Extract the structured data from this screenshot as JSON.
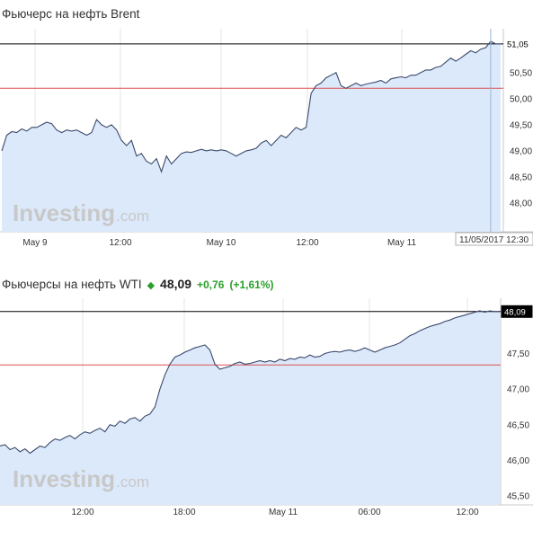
{
  "charts": [
    {
      "title": "Фьючерс на нефть Brent",
      "last_label": "51,05",
      "crosshair_label": "11/05/2017 12:30",
      "watermark": {
        "name": "Investing",
        "suffix": ".com"
      },
      "colors": {
        "line": "#3b4a6b",
        "fill": "#dce9fb",
        "hline_last": "#000000",
        "hline_ref": "#d9534f",
        "crosshair": "#9ab3d6"
      }
    },
    {
      "title": "Фьючерсы на нефть WTI",
      "price": "48,09",
      "change": "+0,76",
      "change_pct": "(+1,61%)",
      "last_label": "48,09",
      "watermark": {
        "name": "Investing",
        "suffix": ".com"
      },
      "colors": {
        "line": "#3b4a6b",
        "fill": "#dce9fb",
        "hline_last": "#000000",
        "hline_ref": "#d9534f",
        "up": "#2aa02a"
      }
    }
  ],
  "chart_data": [
    {
      "type": "area",
      "title": "Фьючерс на нефть Brent",
      "y_tick_labels": [
        "51,05",
        "50,50",
        "50,00",
        "49,50",
        "49,00",
        "48,50",
        "48,00"
      ],
      "ylim": [
        48.0,
        51.1
      ],
      "x_tick_labels": [
        "May 9",
        "12:00",
        "May 10",
        "12:00",
        "May 11"
      ],
      "x_index_max": 100,
      "reference_line": 50.2,
      "last_value": 51.05,
      "crosshair_x": 98,
      "x": [
        0,
        1,
        2,
        3,
        4,
        5,
        6,
        7,
        8,
        9,
        10,
        11,
        12,
        13,
        14,
        15,
        16,
        17,
        18,
        19,
        20,
        21,
        22,
        23,
        24,
        25,
        26,
        27,
        28,
        29,
        30,
        31,
        32,
        33,
        34,
        35,
        36,
        37,
        38,
        39,
        40,
        41,
        42,
        43,
        44,
        45,
        46,
        47,
        48,
        49,
        50,
        51,
        52,
        53,
        54,
        55,
        56,
        57,
        58,
        59,
        60,
        61,
        62,
        63,
        64,
        65,
        66,
        67,
        68,
        69,
        70,
        71,
        72,
        73,
        74,
        75,
        76,
        77,
        78,
        79,
        80,
        81,
        82,
        83,
        84,
        85,
        86,
        87,
        88,
        89,
        90,
        91,
        92,
        93,
        94,
        95,
        96,
        97,
        98,
        99,
        100
      ],
      "values": [
        49.0,
        49.3,
        49.37,
        49.35,
        49.42,
        49.38,
        49.45,
        49.45,
        49.5,
        49.55,
        49.52,
        49.4,
        49.35,
        49.4,
        49.38,
        49.4,
        49.35,
        49.3,
        49.35,
        49.6,
        49.5,
        49.45,
        49.5,
        49.4,
        49.2,
        49.1,
        49.2,
        48.9,
        48.95,
        48.8,
        48.75,
        48.85,
        48.6,
        48.9,
        48.75,
        48.85,
        48.95,
        48.98,
        48.97,
        49.0,
        49.03,
        49.0,
        49.02,
        49.0,
        49.02,
        49.0,
        48.95,
        48.9,
        48.95,
        49.0,
        49.02,
        49.05,
        49.15,
        49.2,
        49.1,
        49.2,
        49.3,
        49.25,
        49.35,
        49.45,
        49.4,
        49.45,
        50.1,
        50.25,
        50.3,
        50.4,
        50.45,
        50.5,
        50.25,
        50.2,
        50.25,
        50.3,
        50.25,
        50.28,
        50.3,
        50.32,
        50.35,
        50.3,
        50.38,
        50.4,
        50.42,
        50.4,
        50.45,
        50.45,
        50.5,
        50.55,
        50.55,
        50.6,
        50.62,
        50.7,
        50.78,
        50.72,
        50.78,
        50.85,
        50.92,
        50.88,
        50.95,
        50.98,
        51.1,
        51.05,
        51.05
      ]
    },
    {
      "type": "area",
      "title": "Фьючерсы на нефть WTI",
      "y_tick_labels": [
        "48,09",
        "47,50",
        "47,00",
        "46,50",
        "46,00",
        "45,50"
      ],
      "ylim": [
        45.5,
        48.1
      ],
      "x_tick_labels": [
        "12:00",
        "18:00",
        "May 11",
        "06:00",
        "12:00"
      ],
      "x_index_max": 100,
      "reference_line": 47.34,
      "last_value": 48.09,
      "x": [
        0,
        1,
        2,
        3,
        4,
        5,
        6,
        7,
        8,
        9,
        10,
        11,
        12,
        13,
        14,
        15,
        16,
        17,
        18,
        19,
        20,
        21,
        22,
        23,
        24,
        25,
        26,
        27,
        28,
        29,
        30,
        31,
        32,
        33,
        34,
        35,
        36,
        37,
        38,
        39,
        40,
        41,
        42,
        43,
        44,
        45,
        46,
        47,
        48,
        49,
        50,
        51,
        52,
        53,
        54,
        55,
        56,
        57,
        58,
        59,
        60,
        61,
        62,
        63,
        64,
        65,
        66,
        67,
        68,
        69,
        70,
        71,
        72,
        73,
        74,
        75,
        76,
        77,
        78,
        79,
        80,
        81,
        82,
        83,
        84,
        85,
        86,
        87,
        88,
        89,
        90,
        91,
        92,
        93,
        94,
        95,
        96,
        97,
        98,
        99,
        100
      ],
      "values": [
        46.2,
        46.22,
        46.15,
        46.18,
        46.12,
        46.16,
        46.1,
        46.15,
        46.2,
        46.18,
        46.25,
        46.3,
        46.28,
        46.32,
        46.35,
        46.3,
        46.36,
        46.4,
        46.38,
        46.42,
        46.45,
        46.4,
        46.5,
        46.48,
        46.55,
        46.52,
        46.58,
        46.6,
        46.55,
        46.62,
        46.65,
        46.75,
        47.0,
        47.2,
        47.35,
        47.45,
        47.48,
        47.52,
        47.55,
        47.58,
        47.6,
        47.62,
        47.55,
        47.35,
        47.28,
        47.3,
        47.32,
        47.36,
        47.38,
        47.35,
        47.36,
        47.38,
        47.4,
        47.38,
        47.4,
        47.38,
        47.42,
        47.4,
        47.43,
        47.42,
        47.45,
        47.44,
        47.48,
        47.45,
        47.46,
        47.5,
        47.52,
        47.53,
        47.52,
        47.54,
        47.55,
        47.53,
        47.55,
        47.58,
        47.55,
        47.52,
        47.55,
        47.58,
        47.6,
        47.62,
        47.65,
        47.7,
        47.75,
        47.78,
        47.82,
        47.85,
        47.88,
        47.9,
        47.92,
        47.95,
        47.97,
        48.0,
        48.02,
        48.04,
        48.06,
        48.08,
        48.1,
        48.08,
        48.1,
        48.09,
        48.09
      ]
    }
  ]
}
